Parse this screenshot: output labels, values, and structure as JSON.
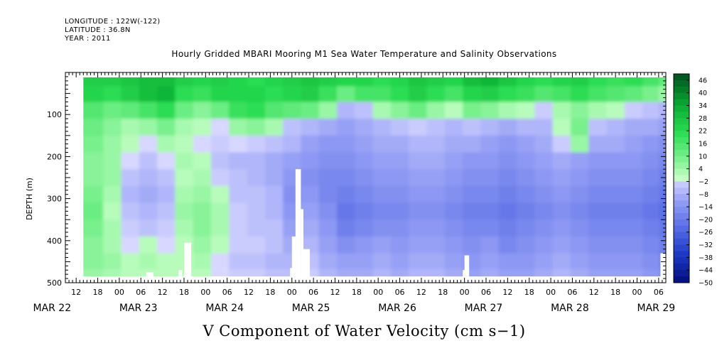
{
  "header": {
    "longitude": "LONGITUDE : 122W(-122)",
    "latitude": "LATITUDE : 36.8N",
    "year": "YEAR : 2011"
  },
  "chart_data": {
    "type": "heatmap",
    "title": "Hourly Gridded MBARI Mooring M1 Sea Water Temperature and Salinity Observations",
    "xlabel": "V Component of Water Velocity (cm s−1)",
    "ylabel": "DEPTH (m)",
    "x_range_hours_from_mar22_00": [
      9,
      176
    ],
    "ylim": [
      500,
      0
    ],
    "y_ticks": [
      100,
      200,
      300,
      400,
      500
    ],
    "x_hour_ticks": [
      {
        "h": 12,
        "label": "12"
      },
      {
        "h": 18,
        "label": "18"
      },
      {
        "h": 24,
        "label": "00"
      },
      {
        "h": 30,
        "label": "06"
      },
      {
        "h": 36,
        "label": "12"
      },
      {
        "h": 42,
        "label": "18"
      },
      {
        "h": 48,
        "label": "00"
      },
      {
        "h": 54,
        "label": "06"
      },
      {
        "h": 60,
        "label": "12"
      },
      {
        "h": 66,
        "label": "18"
      },
      {
        "h": 72,
        "label": "00"
      },
      {
        "h": 78,
        "label": "06"
      },
      {
        "h": 84,
        "label": "12"
      },
      {
        "h": 90,
        "label": "18"
      },
      {
        "h": 96,
        "label": "00"
      },
      {
        "h": 102,
        "label": "06"
      },
      {
        "h": 108,
        "label": "12"
      },
      {
        "h": 114,
        "label": "18"
      },
      {
        "h": 120,
        "label": "00"
      },
      {
        "h": 126,
        "label": "06"
      },
      {
        "h": 132,
        "label": "12"
      },
      {
        "h": 138,
        "label": "18"
      },
      {
        "h": 144,
        "label": "00"
      },
      {
        "h": 150,
        "label": "06"
      },
      {
        "h": 156,
        "label": "12"
      },
      {
        "h": 162,
        "label": "18"
      },
      {
        "h": 168,
        "label": "00"
      },
      {
        "h": 174,
        "label": "06"
      }
    ],
    "x_day_labels": [
      {
        "h": 3,
        "label": "MAR 22"
      },
      {
        "h": 27,
        "label": "MAR 23"
      },
      {
        "h": 51,
        "label": "MAR 24"
      },
      {
        "h": 75,
        "label": "MAR 25"
      },
      {
        "h": 99,
        "label": "MAR 26"
      },
      {
        "h": 123,
        "label": "MAR 27"
      },
      {
        "h": 147,
        "label": "MAR 28"
      },
      {
        "h": 171,
        "label": "MAR 29"
      }
    ],
    "colorbar": {
      "min": -50,
      "max": 50,
      "step": 3,
      "labels": [
        "46",
        "40",
        "34",
        "28",
        "22",
        "16",
        "10",
        "4",
        "−2",
        "−8",
        "−14",
        "−20",
        "−26",
        "−32",
        "−38",
        "−44",
        "−50"
      ]
    },
    "depth_bins": [
      15,
      50,
      90,
      130,
      170,
      210,
      250,
      290,
      330,
      370,
      410,
      450,
      485
    ],
    "times": [
      17,
      22,
      27,
      32,
      37,
      42,
      47,
      52,
      57,
      62,
      67,
      72,
      77,
      82,
      87,
      92,
      97,
      102,
      107,
      112,
      117,
      122,
      127,
      132,
      137,
      142,
      147,
      152,
      157,
      162,
      167,
      172,
      176
    ],
    "velocity": [
      [
        26,
        26,
        28,
        30,
        30,
        26,
        24,
        26,
        24,
        22,
        24,
        26,
        28,
        26,
        24,
        24,
        22,
        24,
        28,
        26,
        24,
        30,
        32,
        28,
        24,
        22,
        24,
        26,
        22,
        20,
        22,
        18,
        14
      ],
      [
        24,
        22,
        26,
        30,
        32,
        22,
        20,
        24,
        24,
        24,
        22,
        24,
        26,
        20,
        12,
        18,
        18,
        22,
        26,
        22,
        18,
        24,
        26,
        22,
        20,
        16,
        18,
        22,
        18,
        16,
        14,
        10,
        6
      ],
      [
        16,
        12,
        14,
        18,
        22,
        12,
        8,
        12,
        20,
        22,
        16,
        14,
        12,
        6,
        -6,
        -4,
        4,
        8,
        12,
        6,
        2,
        10,
        8,
        4,
        2,
        -2,
        4,
        8,
        4,
        2,
        -2,
        -4,
        -6
      ],
      [
        12,
        8,
        4,
        6,
        10,
        4,
        2,
        0,
        6,
        8,
        4,
        -4,
        -6,
        -8,
        -10,
        -8,
        -6,
        -4,
        -2,
        -4,
        -6,
        -4,
        -6,
        -8,
        -6,
        -6,
        2,
        10,
        -4,
        -6,
        -8,
        -8,
        -10
      ],
      [
        10,
        6,
        2,
        0,
        4,
        2,
        0,
        -2,
        0,
        -2,
        -4,
        -6,
        -10,
        -12,
        -12,
        -10,
        -8,
        -8,
        -6,
        -6,
        -8,
        -8,
        -10,
        -12,
        -10,
        -8,
        -2,
        6,
        -8,
        -8,
        -10,
        -12,
        -14
      ],
      [
        8,
        6,
        0,
        -4,
        0,
        4,
        2,
        -4,
        -6,
        -6,
        -8,
        -10,
        -12,
        -14,
        -14,
        -12,
        -10,
        -10,
        -8,
        -8,
        -10,
        -12,
        -12,
        -14,
        -12,
        -10,
        -8,
        -10,
        -12,
        -12,
        -12,
        -14,
        -16
      ],
      [
        8,
        6,
        -4,
        -6,
        -4,
        2,
        4,
        -2,
        -4,
        -6,
        -8,
        -12,
        -14,
        -16,
        -16,
        -14,
        -12,
        -12,
        -10,
        -10,
        -12,
        -14,
        -14,
        -16,
        -14,
        -12,
        -10,
        -12,
        -14,
        -14,
        -14,
        -16,
        -18
      ],
      [
        10,
        4,
        -6,
        -8,
        -6,
        4,
        6,
        2,
        -4,
        -4,
        -6,
        -14,
        -12,
        -16,
        -18,
        -16,
        -14,
        -14,
        -12,
        -12,
        -14,
        -16,
        -16,
        -18,
        -16,
        -14,
        -12,
        -14,
        -16,
        -16,
        -16,
        -18,
        -20
      ],
      [
        12,
        2,
        -4,
        -6,
        -4,
        6,
        8,
        4,
        -2,
        -4,
        -6,
        -12,
        -10,
        -14,
        -20,
        -18,
        -16,
        -16,
        -14,
        -14,
        -16,
        -18,
        -18,
        -20,
        -18,
        -16,
        -14,
        -16,
        -18,
        -18,
        -18,
        -20,
        -22
      ],
      [
        10,
        4,
        -2,
        -4,
        -2,
        4,
        8,
        4,
        -2,
        -4,
        -4,
        -10,
        -8,
        -12,
        -18,
        -16,
        -14,
        -14,
        -12,
        -12,
        -14,
        -16,
        -16,
        -18,
        -16,
        -14,
        -12,
        -14,
        -16,
        -16,
        -16,
        -18,
        -20
      ],
      [
        8,
        4,
        0,
        2,
        0,
        2,
        6,
        2,
        -2,
        -2,
        -4,
        -8,
        -6,
        -10,
        -14,
        -12,
        -10,
        -12,
        -10,
        -10,
        -12,
        -14,
        -12,
        -16,
        -14,
        -12,
        -10,
        -12,
        -14,
        -14,
        -14,
        -16,
        -18
      ],
      [
        8,
        6,
        2,
        4,
        2,
        2,
        4,
        0,
        -4,
        -4,
        -6,
        -6,
        -4,
        -8,
        -10,
        -10,
        -8,
        -10,
        -8,
        -8,
        -10,
        -12,
        -10,
        -12,
        -12,
        -10,
        -8,
        -10,
        -12,
        -12,
        -12,
        -14,
        -16
      ],
      [
        6,
        4,
        2,
        2,
        2,
        2,
        2,
        0,
        -2,
        -2,
        -4,
        -4,
        -2,
        -6,
        -8,
        -8,
        -6,
        -8,
        -6,
        -6,
        -8,
        -10,
        -8,
        -10,
        -10,
        -8,
        -6,
        -8,
        -10,
        -10,
        -10,
        -12,
        -14
      ]
    ],
    "data_gaps": [
      {
        "t0": 31.5,
        "t1": 33.5,
        "depth_top": 475,
        "depth_bottom": 500
      },
      {
        "t0": 40.5,
        "t1": 41.5,
        "depth_top": 470,
        "depth_bottom": 500
      },
      {
        "t0": 42.0,
        "t1": 44.0,
        "depth_top": 405,
        "depth_bottom": 500
      },
      {
        "t0": 71.5,
        "t1": 72.5,
        "depth_top": 465,
        "depth_bottom": 500
      },
      {
        "t0": 72.0,
        "t1": 73.2,
        "depth_top": 390,
        "depth_bottom": 500
      },
      {
        "t0": 73.0,
        "t1": 74.5,
        "depth_top": 230,
        "depth_bottom": 500
      },
      {
        "t0": 74.5,
        "t1": 75.2,
        "depth_top": 325,
        "depth_bottom": 500
      },
      {
        "t0": 75.2,
        "t1": 77.0,
        "depth_top": 420,
        "depth_bottom": 500
      },
      {
        "t0": 119.5,
        "t1": 121.0,
        "depth_top": 470,
        "depth_bottom": 500
      },
      {
        "t0": 120.0,
        "t1": 121.3,
        "depth_top": 435,
        "depth_bottom": 500
      },
      {
        "t0": 174.5,
        "t1": 176.0,
        "depth_top": 430,
        "depth_bottom": 500
      }
    ]
  }
}
